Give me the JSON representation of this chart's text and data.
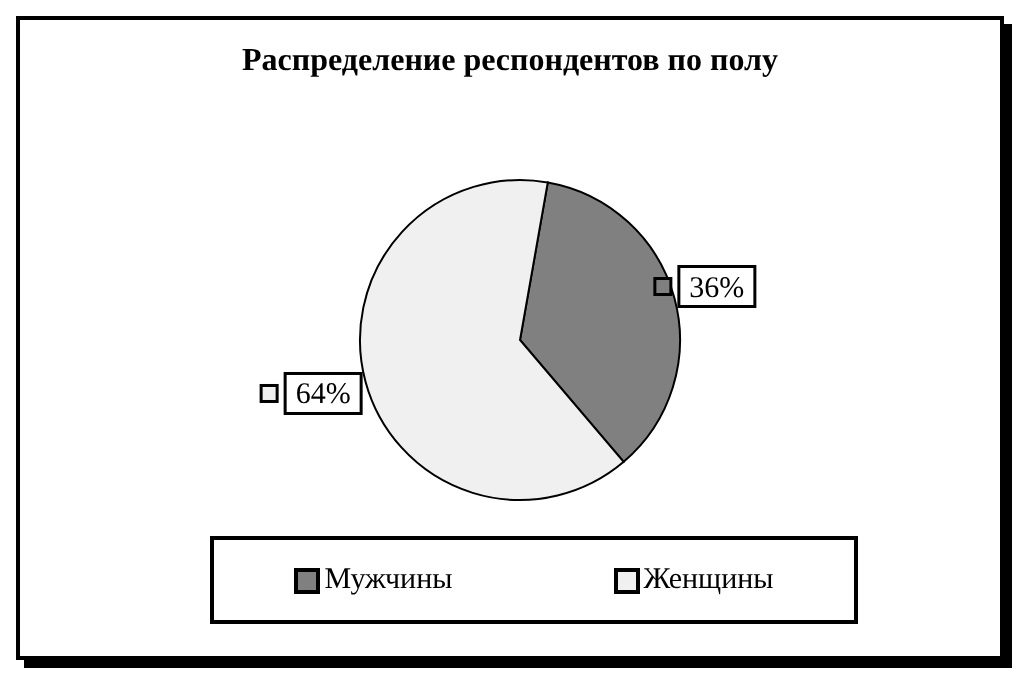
{
  "chart_data": {
    "type": "pie",
    "title": "Распределение респондентов по полу",
    "categories": [
      "Мужчины",
      "Женщины"
    ],
    "values": [
      36,
      64
    ],
    "colors": [
      "#808080",
      "#f0f0f0"
    ],
    "value_labels": [
      "36%",
      "64%"
    ],
    "legend": "bottom"
  }
}
